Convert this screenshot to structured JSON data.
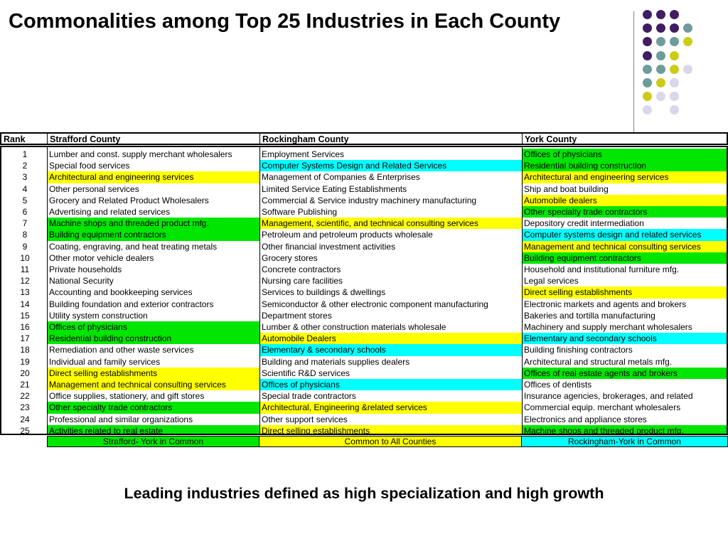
{
  "title": "Commonalities among Top 25 Industries in Each County",
  "footer": "Leading industries defined as high specialization and high growth",
  "colors": {
    "green": "#00e600",
    "yellow": "#ffff00",
    "cyan": "#00ffff",
    "purple": "#3f1e63",
    "teal": "#6e9b9c",
    "olive": "#cccc17",
    "lavender": "#d8d8ea"
  },
  "decor_dots": [
    [
      "purple",
      "purple",
      "purple",
      ""
    ],
    [
      "purple",
      "purple",
      "purple",
      "teal"
    ],
    [
      "purple",
      "teal",
      "teal",
      "olive"
    ],
    [
      "purple",
      "teal",
      "olive",
      ""
    ],
    [
      "teal",
      "teal",
      "olive",
      "lavender"
    ],
    [
      "teal",
      "olive",
      "lavender",
      ""
    ],
    [
      "olive",
      "lavender",
      "lavender",
      ""
    ],
    [
      "lavender",
      "",
      "lavender",
      ""
    ]
  ],
  "table": {
    "headers": [
      "Rank",
      "Strafford County",
      "Rockingham County",
      "York County"
    ],
    "ranks": [
      "1",
      "2",
      "3",
      "4",
      "5",
      "6",
      "7",
      "8",
      "9",
      "10",
      "11",
      "12",
      "13",
      "14",
      "15",
      "16",
      "17",
      "18",
      "19",
      "20",
      "21",
      "22",
      "23",
      "24",
      "25"
    ],
    "strafford": [
      {
        "text": "Lumber and const. supply merchant wholesalers",
        "color": ""
      },
      {
        "text": "Special food services",
        "color": ""
      },
      {
        "text": "Architectural and engineering services",
        "color": "yellow"
      },
      {
        "text": "Other personal services",
        "color": ""
      },
      {
        "text": "Grocery and Related Product Wholesalers",
        "color": ""
      },
      {
        "text": "Advertising and related services",
        "color": ""
      },
      {
        "text": "Machine shops and threaded product mfg.",
        "color": "green"
      },
      {
        "text": "Building equipment contractors",
        "color": "green"
      },
      {
        "text": "Coating, engraving, and heat treating metals",
        "color": ""
      },
      {
        "text": "Other motor vehicle dealers",
        "color": ""
      },
      {
        "text": "Private households",
        "color": ""
      },
      {
        "text": "National Security",
        "color": ""
      },
      {
        "text": "Accounting and bookkeeping services",
        "color": ""
      },
      {
        "text": "Building foundation and exterior contractors",
        "color": ""
      },
      {
        "text": "Utility system construction",
        "color": ""
      },
      {
        "text": "Offices of physicians",
        "color": "green"
      },
      {
        "text": "Residential building construction",
        "color": "green"
      },
      {
        "text": "Remediation and other waste services",
        "color": ""
      },
      {
        "text": "Individual and family services",
        "color": ""
      },
      {
        "text": "Direct selling establishments",
        "color": "yellow"
      },
      {
        "text": "Management and technical consulting services",
        "color": "yellow"
      },
      {
        "text": "Office supplies, stationery, and gift stores",
        "color": ""
      },
      {
        "text": "Other specialty trade contractors",
        "color": "green"
      },
      {
        "text": "Professional and similar organizations",
        "color": ""
      },
      {
        "text": "Activities related to real estate",
        "color": "green"
      }
    ],
    "rockingham": [
      {
        "text": "Employment Services",
        "color": ""
      },
      {
        "text": "Computer Systems Design and Related Services",
        "color": "cyan"
      },
      {
        "text": "Management of Companies & Enterprises",
        "color": ""
      },
      {
        "text": "Limited Service Eating Establishments",
        "color": ""
      },
      {
        "text": "Commercial & Service industry machinery manufacturing",
        "color": ""
      },
      {
        "text": "Software Publishing",
        "color": ""
      },
      {
        "text": "Management, scientific, and technical consulting services",
        "color": "yellow"
      },
      {
        "text": "Petroleum and petroleum products wholesale",
        "color": ""
      },
      {
        "text": "Other financial investment activities",
        "color": ""
      },
      {
        "text": "Grocery stores",
        "color": ""
      },
      {
        "text": "Concrete contractors",
        "color": ""
      },
      {
        "text": "Nursing care facilities",
        "color": ""
      },
      {
        "text": "Services to buildings & dwellings",
        "color": ""
      },
      {
        "text": "Semiconductor & other electronic component manufacturing",
        "color": ""
      },
      {
        "text": "Department stores",
        "color": ""
      },
      {
        "text": "Lumber & other construction materials wholesale",
        "color": ""
      },
      {
        "text": "Automobile Dealers",
        "color": "yellow"
      },
      {
        "text": "Elementary & secondary schools",
        "color": "cyan"
      },
      {
        "text": "Building and materials supplies dealers",
        "color": ""
      },
      {
        "text": "Scientific R&D services",
        "color": ""
      },
      {
        "text": "Offices of physicians",
        "color": "cyan"
      },
      {
        "text": "Special trade contractors",
        "color": ""
      },
      {
        "text": "Architectural, Engineering &related services",
        "color": "yellow"
      },
      {
        "text": "Other support services",
        "color": ""
      },
      {
        "text": "Direct selling establishments",
        "color": "yellow"
      }
    ],
    "york": [
      {
        "text": "Offices of physicians",
        "color": "green"
      },
      {
        "text": "Residential building construction",
        "color": "green"
      },
      {
        "text": "Architectural and engineering services",
        "color": "yellow"
      },
      {
        "text": "Ship and boat building",
        "color": ""
      },
      {
        "text": "Automobile dealers",
        "color": "yellow"
      },
      {
        "text": "Other specialty trade contractors",
        "color": "green"
      },
      {
        "text": "Depository credit intermediation",
        "color": ""
      },
      {
        "text": "Computer systems design and related services",
        "color": "cyan"
      },
      {
        "text": "Management and technical consulting services",
        "color": "yellow"
      },
      {
        "text": "Building equipment contractors",
        "color": "green"
      },
      {
        "text": "Household and institutional furniture mfg.",
        "color": ""
      },
      {
        "text": "Legal services",
        "color": ""
      },
      {
        "text": "Direct selling establishments",
        "color": "yellow"
      },
      {
        "text": "Electronic markets and agents and brokers",
        "color": ""
      },
      {
        "text": "Bakeries and tortilla manufacturing",
        "color": ""
      },
      {
        "text": "Machinery and supply merchant wholesalers",
        "color": ""
      },
      {
        "text": "Elementary and secondary schools",
        "color": "cyan"
      },
      {
        "text": "Building finishing contractors",
        "color": ""
      },
      {
        "text": "Architectural and structural metals mfg.",
        "color": ""
      },
      {
        "text": "Offices of real estate agents and brokers",
        "color": "green"
      },
      {
        "text": "Offices of dentists",
        "color": ""
      },
      {
        "text": "Insurance agencies, brokerages, and related",
        "color": ""
      },
      {
        "text": "Commercial equip. merchant wholesalers",
        "color": ""
      },
      {
        "text": "Electronics and appliance stores",
        "color": ""
      },
      {
        "text": "Machine shops and threaded product mfg.",
        "color": "green"
      }
    ]
  },
  "legend": [
    {
      "label": "Strafford- York in Common",
      "color": "green"
    },
    {
      "label": "Common to All Counties",
      "color": "yellow"
    },
    {
      "label": "Rockingham-York in Common",
      "color": "cyan"
    }
  ]
}
